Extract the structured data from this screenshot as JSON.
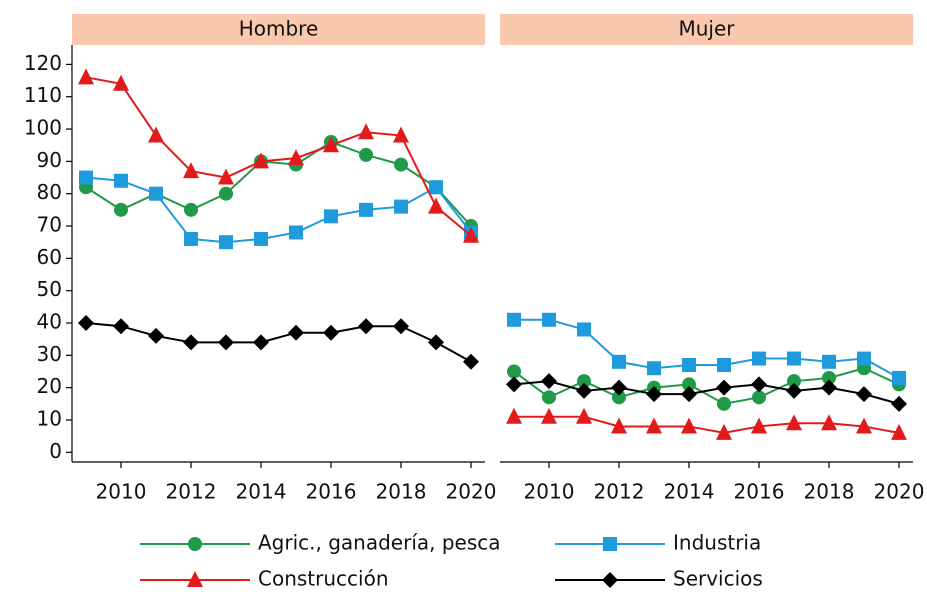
{
  "chart_data": [
    {
      "type": "line",
      "title": "Hombre",
      "x": [
        2009,
        2010,
        2011,
        2012,
        2013,
        2014,
        2015,
        2016,
        2017,
        2018,
        2019,
        2020
      ],
      "xlim": [
        2008.6,
        2020.4
      ],
      "xticks": [
        2010,
        2012,
        2014,
        2016,
        2018,
        2020
      ],
      "ylim": [
        -3,
        126
      ],
      "yticks": [
        0,
        10,
        20,
        30,
        40,
        50,
        60,
        70,
        80,
        90,
        100,
        110,
        120
      ],
      "series": [
        {
          "name": "Agric., ganadería, pesca",
          "color": "#1f9a48",
          "marker": "circle",
          "values": [
            82,
            75,
            80,
            75,
            80,
            90,
            89,
            96,
            92,
            89,
            82,
            70
          ]
        },
        {
          "name": "Industria",
          "color": "#1e9bdc",
          "marker": "square",
          "values": [
            85,
            84,
            80,
            66,
            65,
            66,
            68,
            73,
            75,
            76,
            82,
            68
          ]
        },
        {
          "name": "Construcción",
          "color": "#e31a1c",
          "marker": "triangle",
          "values": [
            116,
            114,
            98,
            87,
            85,
            90,
            91,
            95,
            99,
            98,
            76,
            67
          ]
        },
        {
          "name": "Servicios",
          "color": "#000000",
          "marker": "diamond",
          "values": [
            40,
            39,
            36,
            34,
            34,
            34,
            37,
            37,
            39,
            39,
            34,
            28
          ]
        }
      ]
    },
    {
      "type": "line",
      "title": "Mujer",
      "x": [
        2009,
        2010,
        2011,
        2012,
        2013,
        2014,
        2015,
        2016,
        2017,
        2018,
        2019,
        2020
      ],
      "xlim": [
        2008.6,
        2020.4
      ],
      "xticks": [
        2010,
        2012,
        2014,
        2016,
        2018,
        2020
      ],
      "ylim": [
        -3,
        126
      ],
      "series": [
        {
          "name": "Agric., ganadería, pesca",
          "color": "#1f9a48",
          "marker": "circle",
          "values": [
            25,
            17,
            22,
            17,
            20,
            21,
            15,
            17,
            22,
            23,
            26,
            21
          ]
        },
        {
          "name": "Industria",
          "color": "#1e9bdc",
          "marker": "square",
          "values": [
            41,
            41,
            38,
            28,
            26,
            27,
            27,
            29,
            29,
            28,
            29,
            23
          ]
        },
        {
          "name": "Construcción",
          "color": "#e31a1c",
          "marker": "triangle",
          "values": [
            11,
            11,
            11,
            8,
            8,
            8,
            6,
            8,
            9,
            9,
            8,
            6
          ]
        },
        {
          "name": "Servicios",
          "color": "#000000",
          "marker": "diamond",
          "values": [
            21,
            22,
            19,
            20,
            18,
            18,
            20,
            21,
            19,
            20,
            18,
            15
          ]
        }
      ]
    }
  ]
}
